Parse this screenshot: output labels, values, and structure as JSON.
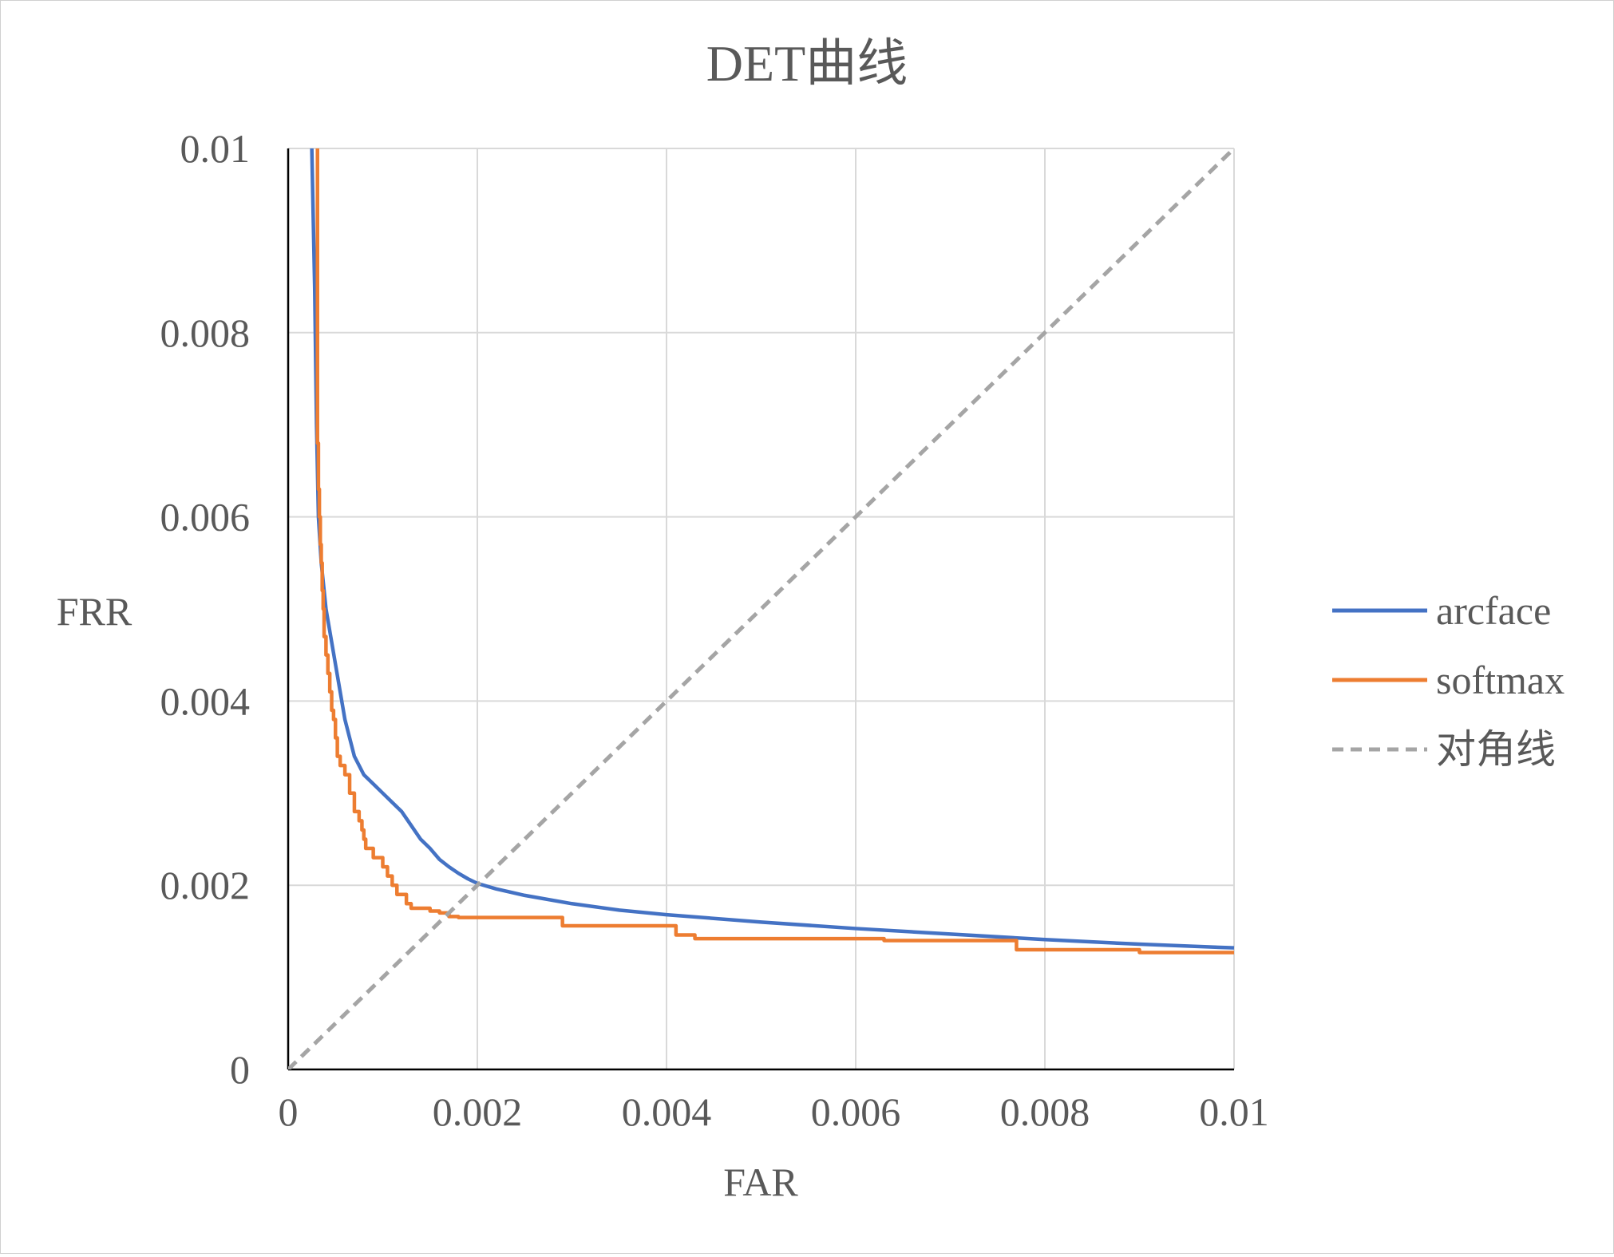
{
  "chart_data": {
    "type": "line",
    "title": "DET曲线",
    "xlabel": "FAR",
    "ylabel": "FRR",
    "xlim": [
      0,
      0.01
    ],
    "ylim": [
      0,
      0.01
    ],
    "x_ticks": [
      "0",
      "0.002",
      "0.004",
      "0.006",
      "0.008",
      "0.01"
    ],
    "y_ticks": [
      "0",
      "0.002",
      "0.004",
      "0.006",
      "0.008",
      "0.01"
    ],
    "grid": true,
    "legend_position": "right",
    "series": [
      {
        "name": "arcface",
        "color": "#4472C4",
        "style": "solid",
        "x": [
          0.00025,
          0.00028,
          0.0003,
          0.00032,
          0.00035,
          0.0004,
          0.00045,
          0.0005,
          0.00055,
          0.0006,
          0.00065,
          0.0007,
          0.0008,
          0.0009,
          0.001,
          0.0011,
          0.0012,
          0.0013,
          0.0014,
          0.0015,
          0.0016,
          0.0017,
          0.0018,
          0.0019,
          0.002,
          0.0022,
          0.0025,
          0.003,
          0.0035,
          0.004,
          0.005,
          0.006,
          0.007,
          0.008,
          0.009,
          0.01
        ],
        "y": [
          0.01,
          0.0085,
          0.007,
          0.006,
          0.0055,
          0.005,
          0.0047,
          0.0044,
          0.0041,
          0.0038,
          0.0036,
          0.0034,
          0.0032,
          0.0031,
          0.003,
          0.0029,
          0.0028,
          0.00265,
          0.0025,
          0.0024,
          0.00228,
          0.0022,
          0.00213,
          0.00207,
          0.00202,
          0.00196,
          0.00189,
          0.0018,
          0.00173,
          0.00168,
          0.0016,
          0.00153,
          0.00147,
          0.00141,
          0.00136,
          0.00132
        ]
      },
      {
        "name": "softmax",
        "color": "#ED7D31",
        "style": "step",
        "x": [
          0.00031,
          0.00031,
          0.00032,
          0.00033,
          0.00034,
          0.00035,
          0.00036,
          0.00037,
          0.00038,
          0.0004,
          0.00042,
          0.00044,
          0.00046,
          0.00048,
          0.0005,
          0.00052,
          0.00055,
          0.00058,
          0.0006,
          0.00065,
          0.0007,
          0.00075,
          0.00078,
          0.0008,
          0.00082,
          0.00085,
          0.0009,
          0.00095,
          0.001,
          0.00105,
          0.0011,
          0.00115,
          0.0012,
          0.00125,
          0.0013,
          0.0014,
          0.0015,
          0.0016,
          0.0017,
          0.0018,
          0.0029,
          0.0029,
          0.004,
          0.0041,
          0.0043,
          0.0063,
          0.0077,
          0.009,
          0.01
        ],
        "y": [
          0.01,
          0.0068,
          0.0063,
          0.006,
          0.0057,
          0.0055,
          0.0052,
          0.005,
          0.0047,
          0.0045,
          0.0043,
          0.0041,
          0.0039,
          0.0038,
          0.0036,
          0.0034,
          0.0033,
          0.0033,
          0.0032,
          0.003,
          0.0028,
          0.0027,
          0.0026,
          0.0025,
          0.0024,
          0.0024,
          0.0023,
          0.0023,
          0.0022,
          0.0021,
          0.002,
          0.0019,
          0.0019,
          0.0018,
          0.00175,
          0.00175,
          0.00172,
          0.0017,
          0.00166,
          0.00165,
          0.00165,
          0.00156,
          0.00156,
          0.00146,
          0.00142,
          0.0014,
          0.0013,
          0.00127,
          0.00127
        ]
      },
      {
        "name": "对角线",
        "color": "#A5A5A5",
        "style": "dashed",
        "x": [
          0,
          0.01
        ],
        "y": [
          0,
          0.01
        ]
      }
    ]
  }
}
